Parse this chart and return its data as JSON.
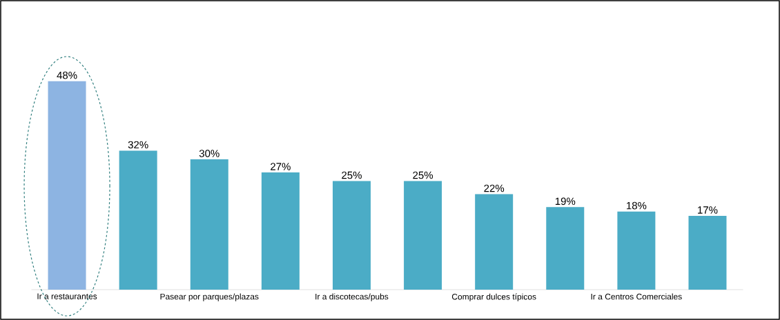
{
  "chart_data": {
    "type": "bar",
    "categories": [
      "Ir a restaurantes",
      null,
      "Pasear por parques/plazas",
      null,
      "Ir a discotecas/pubs",
      null,
      "Comprar dulces típicos",
      null,
      "Ir a Centros Comerciales",
      null
    ],
    "values": [
      48,
      32,
      30,
      27,
      25,
      25,
      22,
      19,
      18,
      17
    ],
    "colors": [
      "#8db4e2",
      "#4bacc6",
      "#4bacc6",
      "#4bacc6",
      "#4bacc6",
      "#4bacc6",
      "#4bacc6",
      "#4bacc6",
      "#4bacc6",
      "#4bacc6"
    ],
    "value_labels": [
      "48%",
      "32%",
      "30%",
      "27%",
      "25%",
      "25%",
      "22%",
      "19%",
      "18%",
      "17%"
    ]
  }
}
